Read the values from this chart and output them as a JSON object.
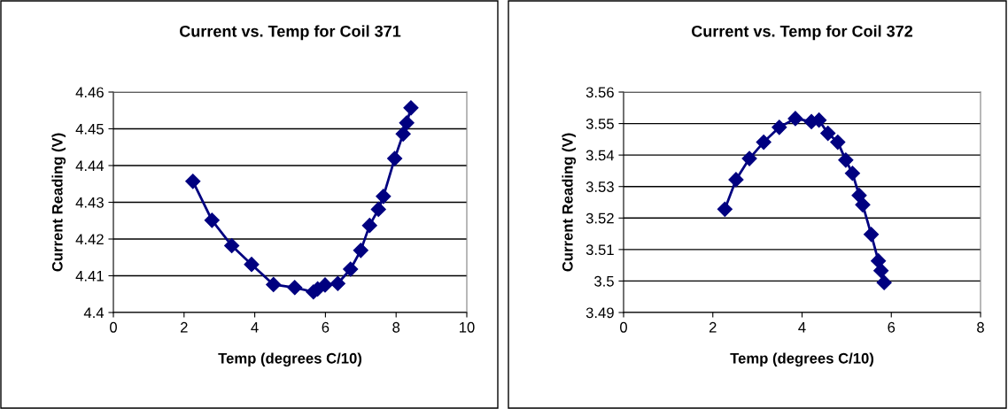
{
  "chart_data": [
    {
      "type": "line",
      "title": "Current vs. Temp for Coil 371",
      "xlabel": "Temp (degrees C/10)",
      "ylabel": "Current Reading (V)",
      "xlim": [
        0,
        10
      ],
      "xticks": [
        0,
        2,
        4,
        6,
        8,
        10
      ],
      "ylim": [
        4.4,
        4.46
      ],
      "yticks": [
        4.4,
        4.41,
        4.42,
        4.43,
        4.44,
        4.45,
        4.46
      ],
      "grid": "y",
      "legend": false,
      "marker": "diamond",
      "line_style": "solid",
      "series": [
        {
          "color": "#000080",
          "x": [
            2.25,
            2.79,
            3.35,
            3.91,
            4.53,
            5.13,
            5.66,
            5.78,
            5.99,
            6.35,
            6.71,
            7.0,
            7.25,
            7.5,
            7.64,
            7.96,
            8.2,
            8.3,
            8.42
          ],
          "values": [
            4.4357,
            4.4251,
            4.4182,
            4.4131,
            4.4076,
            4.4068,
            4.4056,
            4.4064,
            4.4075,
            4.4079,
            4.4118,
            4.4169,
            4.4237,
            4.4281,
            4.4316,
            4.4419,
            4.4486,
            4.4516,
            4.4557
          ]
        }
      ]
    },
    {
      "type": "line",
      "title": "Current vs. Temp for Coil 372",
      "xlabel": "Temp (degrees C/10)",
      "ylabel": "Current Reading (V)",
      "xlim": [
        0,
        8
      ],
      "xticks": [
        0,
        2,
        4,
        6,
        8
      ],
      "ylim": [
        3.49,
        3.56
      ],
      "yticks": [
        3.49,
        3.5,
        3.51,
        3.52,
        3.53,
        3.54,
        3.55,
        3.56
      ],
      "grid": "y",
      "legend": false,
      "marker": "diamond",
      "line_style": "solid",
      "series": [
        {
          "color": "#000080",
          "x": [
            2.27,
            2.52,
            2.82,
            3.14,
            3.49,
            3.85,
            4.21,
            4.38,
            4.58,
            4.8,
            4.98,
            5.13,
            5.28,
            5.36,
            5.55,
            5.71,
            5.77,
            5.84
          ],
          "values": [
            3.5228,
            3.5322,
            3.5389,
            3.5441,
            3.5488,
            3.5516,
            3.5506,
            3.5511,
            3.5469,
            3.5441,
            3.5384,
            3.5342,
            3.5272,
            3.5242,
            3.5148,
            3.5064,
            3.5033,
            3.4995
          ]
        }
      ]
    }
  ]
}
